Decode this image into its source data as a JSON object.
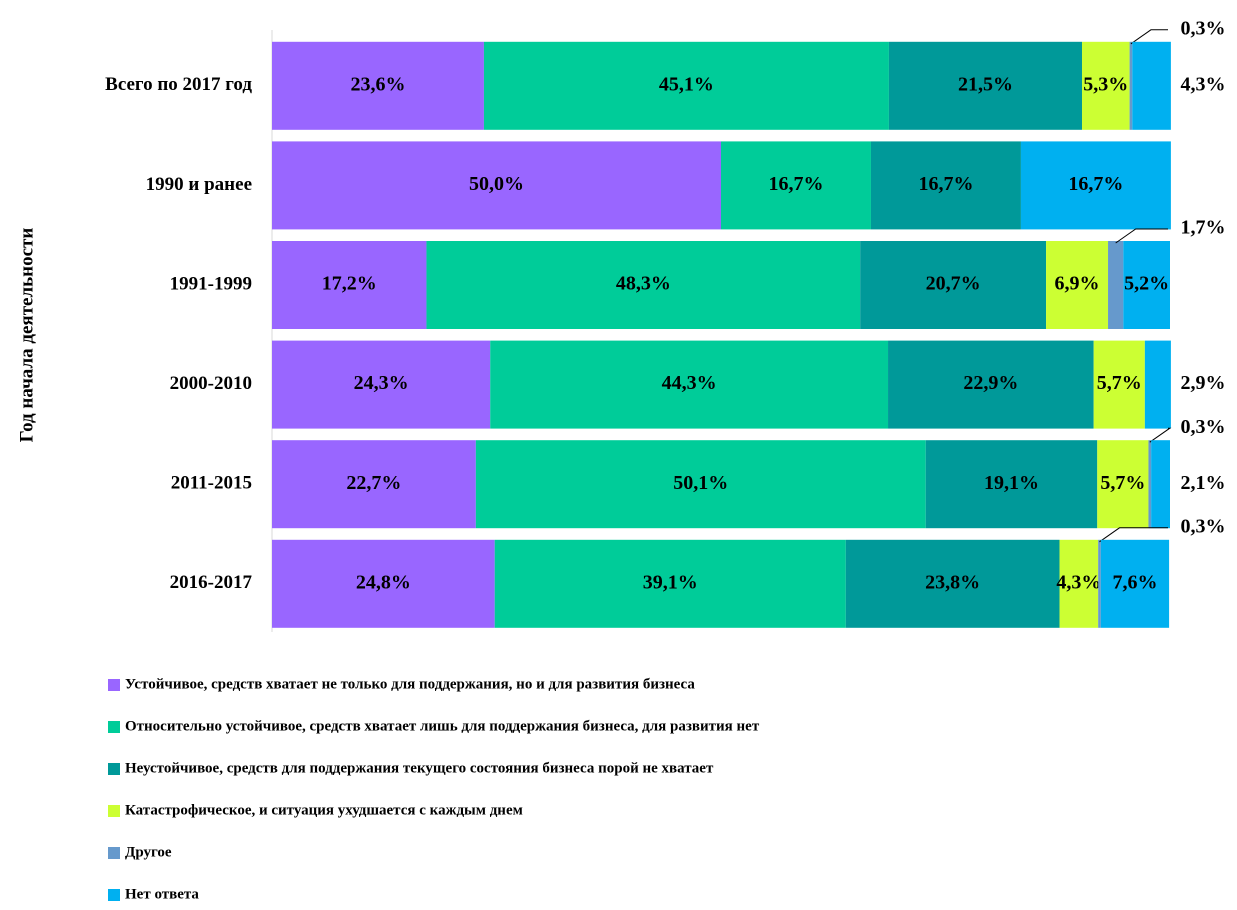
{
  "chart_data": {
    "type": "stacked-bar-horizontal",
    "y_axis_label": "Год начала деятельности",
    "categories": [
      "Всего по 2017 год",
      "1990 и ранее",
      "1991-1999",
      "2000-2010",
      "2011-2015",
      "2016-2017"
    ],
    "xlim": [
      0,
      100
    ],
    "series": [
      {
        "name": "Устойчивое, средств хватает не только для поддержания, но и для развития бизнеса",
        "color": "#9966ff",
        "values": [
          23.6,
          50.0,
          17.2,
          24.3,
          22.7,
          24.8
        ],
        "value_labels": [
          "23,6%",
          "50,0%",
          "17,2%",
          "24,3%",
          "22,7%",
          "24,8%"
        ]
      },
      {
        "name": "Относительно устойчивое, средств хватает лишь для поддержания бизнеса, для развития нет",
        "color": "#00cc99",
        "values": [
          45.1,
          16.7,
          48.3,
          44.3,
          50.1,
          39.1
        ],
        "value_labels": [
          "45,1%",
          "16,7%",
          "48,3%",
          "44,3%",
          "50,1%",
          "39,1%"
        ]
      },
      {
        "name": "Неустойчивое, средств для поддержания текущего состояния бизнеса порой не хватает",
        "color": "#009999",
        "values": [
          21.5,
          16.7,
          20.7,
          22.9,
          19.1,
          23.8
        ],
        "value_labels": [
          "21,5%",
          "16,7%",
          "20,7%",
          "22,9%",
          "19,1%",
          "23,8%"
        ]
      },
      {
        "name": "Катастрофическое, и ситуация ухудшается с каждым днем",
        "color": "#ccff33",
        "values": [
          5.3,
          0,
          6.9,
          5.7,
          5.7,
          4.3
        ],
        "value_labels": [
          "5,3%",
          null,
          "6,9%",
          "5,7%",
          "5,7%",
          "4,3%"
        ]
      },
      {
        "name": "Другое",
        "color": "#6699cc",
        "values": [
          0.3,
          0,
          1.7,
          0,
          0.3,
          0.3
        ],
        "value_labels": [
          "0,3%",
          null,
          "1,7%",
          null,
          "0,3%",
          "0,3%"
        ]
      },
      {
        "name": "Нет ответа",
        "color": "#00b0f0",
        "values": [
          4.3,
          16.7,
          5.2,
          2.9,
          2.1,
          7.6
        ],
        "value_labels": [
          "4,3%",
          "16,7%",
          "5,2%",
          "2,9%",
          "2,1%",
          "7,6%"
        ]
      }
    ]
  }
}
